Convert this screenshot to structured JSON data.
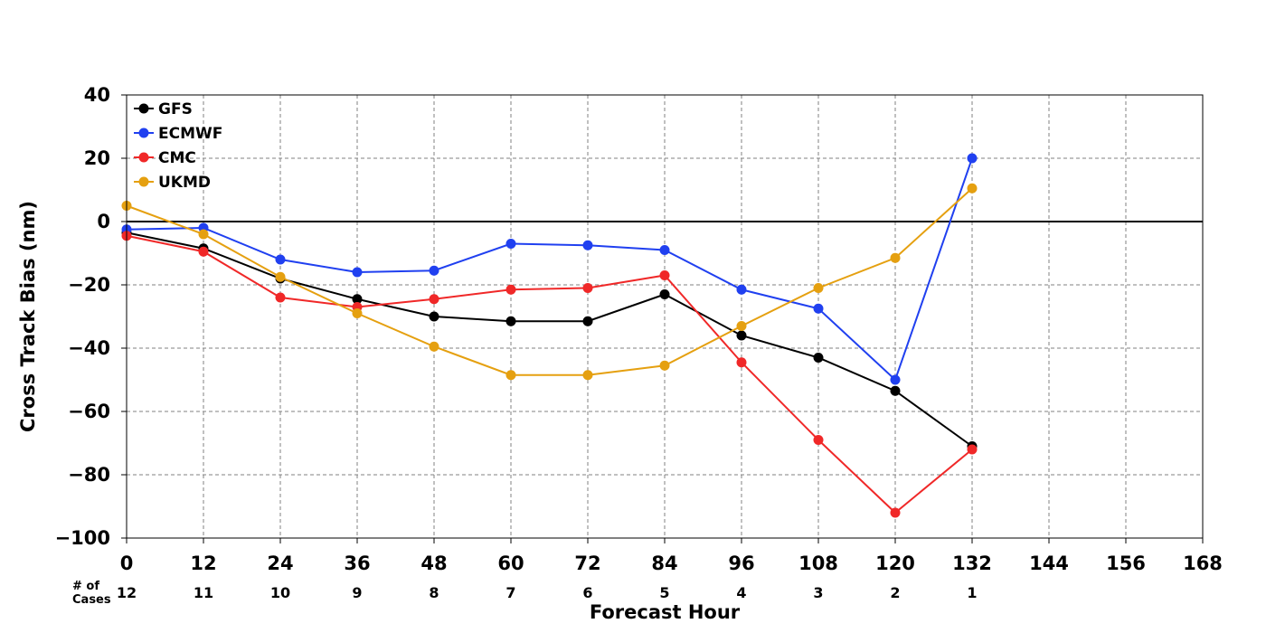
{
  "chart_data": {
    "type": "line",
    "title": "",
    "xlabel": "Forecast Hour",
    "ylabel": "Cross Track Bias (nm)",
    "xlim": [
      0,
      168
    ],
    "ylim": [
      -100,
      40
    ],
    "x_ticks": [
      0,
      12,
      24,
      36,
      48,
      60,
      72,
      84,
      96,
      108,
      120,
      132,
      144,
      156,
      168
    ],
    "x_tick_labels": [
      "0",
      "12",
      "24",
      "36",
      "48",
      "60",
      "72",
      "84",
      "96",
      "108",
      "120",
      "132",
      "144",
      "156",
      "168"
    ],
    "y_ticks": [
      -100,
      -80,
      -60,
      -40,
      -20,
      0,
      20,
      40
    ],
    "y_tick_labels": [
      "−100",
      "−80",
      "−60",
      "−40",
      "−20",
      "0",
      "20",
      "40"
    ],
    "grid": true,
    "zero_line": true,
    "legend_position": "top-left",
    "series": [
      {
        "name": "GFS",
        "color": "#000000",
        "x": [
          0,
          12,
          24,
          36,
          48,
          60,
          72,
          84,
          96,
          108,
          120,
          132
        ],
        "values": [
          -3.5,
          -8.5,
          -18.0,
          -24.5,
          -30.0,
          -31.5,
          -31.5,
          -23.0,
          -36.0,
          -43.0,
          -53.5,
          -71.0
        ]
      },
      {
        "name": "ECMWF",
        "color": "#2040f0",
        "x": [
          0,
          12,
          24,
          36,
          48,
          60,
          72,
          84,
          96,
          108,
          120,
          132
        ],
        "values": [
          -2.5,
          -2.0,
          -12.0,
          -16.0,
          -15.5,
          -7.0,
          -7.5,
          -9.0,
          -21.5,
          -27.5,
          -50.0,
          20.0
        ]
      },
      {
        "name": "CMC",
        "color": "#f02828",
        "x": [
          0,
          12,
          24,
          36,
          48,
          60,
          72,
          84,
          96,
          108,
          120,
          132
        ],
        "values": [
          -4.5,
          -9.5,
          -24.0,
          -27.0,
          -24.5,
          -21.5,
          -21.0,
          -17.0,
          -44.5,
          -69.0,
          -92.0,
          -72.0
        ]
      },
      {
        "name": "UKMD",
        "color": "#e5a010",
        "x": [
          0,
          12,
          24,
          36,
          48,
          60,
          72,
          84,
          96,
          108,
          120,
          132
        ],
        "values": [
          5.0,
          -4.0,
          -17.5,
          -29.0,
          -39.5,
          -48.5,
          -48.5,
          -45.5,
          -33.0,
          -21.0,
          -11.5,
          10.5
        ]
      }
    ],
    "cases": {
      "label": "# of Cases",
      "label_lines": [
        "# of",
        "Cases"
      ],
      "x": [
        0,
        12,
        24,
        36,
        48,
        60,
        72,
        84,
        96,
        108,
        120,
        132
      ],
      "values": [
        12,
        11,
        10,
        9,
        8,
        7,
        6,
        5,
        4,
        3,
        2,
        1
      ]
    }
  }
}
